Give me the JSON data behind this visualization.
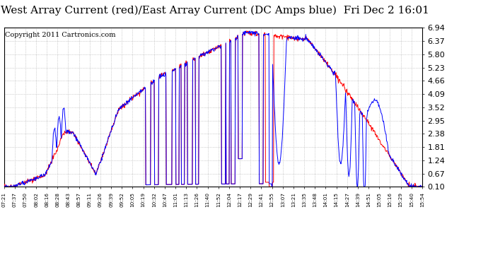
{
  "title": "West Array Current (red)/East Array Current (DC Amps blue)  Fri Dec 2 16:01",
  "copyright": "Copyright 2011 Cartronics.com",
  "yticks": [
    0.1,
    0.67,
    1.24,
    1.81,
    2.38,
    2.95,
    3.52,
    4.09,
    4.66,
    5.23,
    5.8,
    6.37,
    6.94
  ],
  "ymin": 0.1,
  "ymax": 6.94,
  "color_west": "#FF0000",
  "color_east": "#0000FF",
  "background_color": "#FFFFFF",
  "grid_color": "#AAAAAA",
  "title_fontsize": 11,
  "copyright_fontsize": 7,
  "xtick_labels": [
    "07:21",
    "07:37",
    "07:50",
    "08:02",
    "08:16",
    "08:28",
    "08:43",
    "08:57",
    "09:11",
    "09:26",
    "09:39",
    "09:52",
    "10:05",
    "10:19",
    "10:32",
    "10:47",
    "11:01",
    "11:13",
    "11:26",
    "11:40",
    "11:52",
    "12:04",
    "12:17",
    "12:29",
    "12:41",
    "12:55",
    "13:07",
    "13:21",
    "13:35",
    "13:48",
    "14:01",
    "14:15",
    "14:27",
    "14:39",
    "14:51",
    "15:05",
    "15:16",
    "15:29",
    "15:40",
    "15:54"
  ]
}
